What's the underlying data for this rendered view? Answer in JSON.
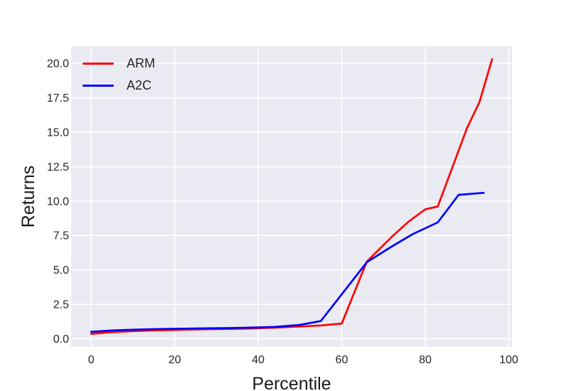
{
  "chart_data": {
    "type": "line",
    "title": "",
    "xlabel": "Percentile",
    "ylabel": "Returns",
    "xlim": [
      -4.8,
      100.8
    ],
    "ylim": [
      -0.6,
      21.25
    ],
    "xticks": {
      "values": [
        0,
        20,
        40,
        60,
        80,
        100
      ],
      "labels": [
        "0",
        "20",
        "40",
        "60",
        "80",
        "100"
      ]
    },
    "yticks": {
      "values": [
        0,
        2.5,
        5,
        7.5,
        10,
        12.5,
        15,
        17.5,
        20
      ],
      "labels": [
        "0.0",
        "2.5",
        "5.0",
        "7.5",
        "10.0",
        "12.5",
        "15.0",
        "17.5",
        "20.0"
      ]
    },
    "grid": true,
    "legend_position": "upper-left",
    "series": [
      {
        "name": "ARM",
        "color": "#ff0000",
        "points": [
          [
            0,
            0.35
          ],
          [
            5,
            0.48
          ],
          [
            11,
            0.56
          ],
          [
            16,
            0.61
          ],
          [
            22,
            0.65
          ],
          [
            27,
            0.68
          ],
          [
            33,
            0.71
          ],
          [
            38,
            0.74
          ],
          [
            44,
            0.8
          ],
          [
            50,
            0.88
          ],
          [
            55,
            0.96
          ],
          [
            60,
            1.1
          ],
          [
            66,
            5.6
          ],
          [
            72,
            7.4
          ],
          [
            76,
            8.5
          ],
          [
            80,
            9.4
          ],
          [
            83,
            9.6
          ],
          [
            90,
            15.3
          ],
          [
            93,
            17.2
          ],
          [
            96,
            20.3
          ]
        ]
      },
      {
        "name": "A2C",
        "color": "#0000ff",
        "points": [
          [
            0,
            0.5
          ],
          [
            5,
            0.6
          ],
          [
            11,
            0.66
          ],
          [
            16,
            0.7
          ],
          [
            22,
            0.73
          ],
          [
            27,
            0.75
          ],
          [
            33,
            0.77
          ],
          [
            38,
            0.8
          ],
          [
            44,
            0.85
          ],
          [
            50,
            1.0
          ],
          [
            55,
            1.28
          ],
          [
            66,
            5.55
          ],
          [
            72,
            6.7
          ],
          [
            77,
            7.6
          ],
          [
            83,
            8.45
          ],
          [
            88,
            10.45
          ],
          [
            94,
            10.6
          ]
        ]
      }
    ],
    "style": {
      "plot_bg": "#eaeaf2",
      "grid_color": "#ffffff",
      "tick_color": "#262626",
      "label_color": "#1a1a1a"
    }
  }
}
